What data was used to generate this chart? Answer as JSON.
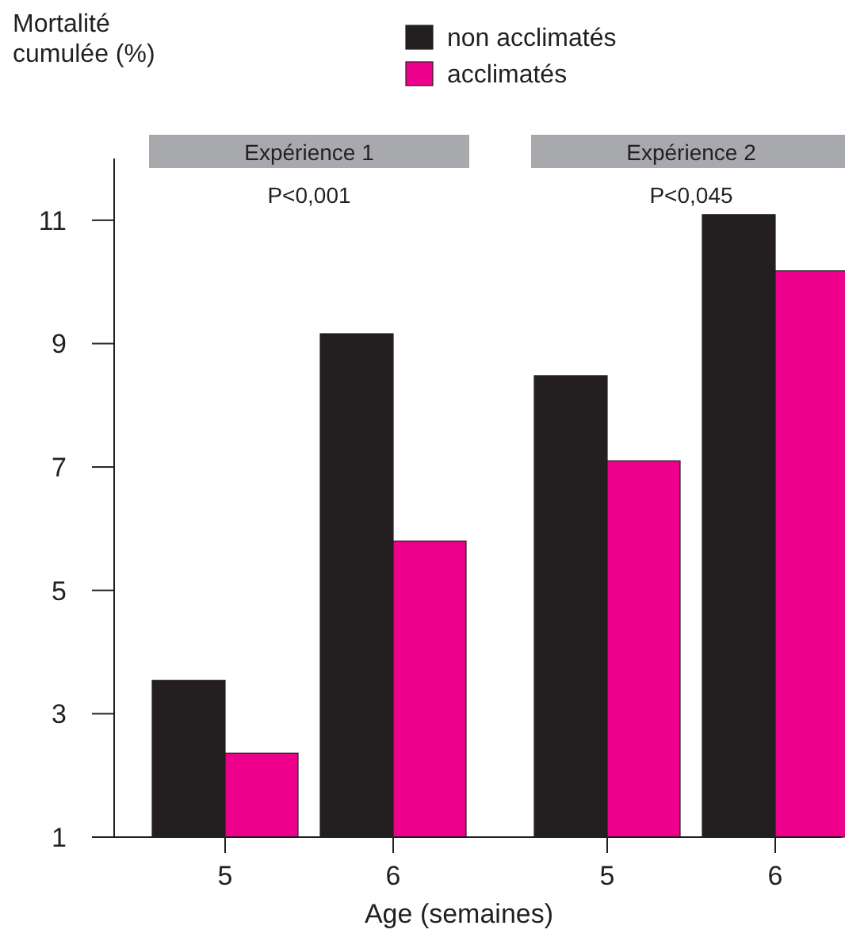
{
  "chart_data": {
    "type": "bar",
    "ylabel": "Mortalité cumulée (%)",
    "xlabel": "Age (semaines)",
    "categories": [
      "5",
      "6",
      "5",
      "6"
    ],
    "series": [
      {
        "name": "non acclimatés",
        "color": "#231f20",
        "values": [
          3.54,
          9.16,
          8.48,
          11.09
        ]
      },
      {
        "name": "acclimatés",
        "color": "#ec008c",
        "values": [
          2.36,
          5.8,
          7.1,
          10.18
        ]
      }
    ],
    "ylim": [
      1,
      12
    ],
    "yticks": [
      1,
      3,
      5,
      7,
      9,
      11
    ],
    "grid": false,
    "legend": "top",
    "annotations": [
      "Expérience 1",
      "P<0,001",
      "Expérience 2",
      "P<0,045"
    ]
  }
}
